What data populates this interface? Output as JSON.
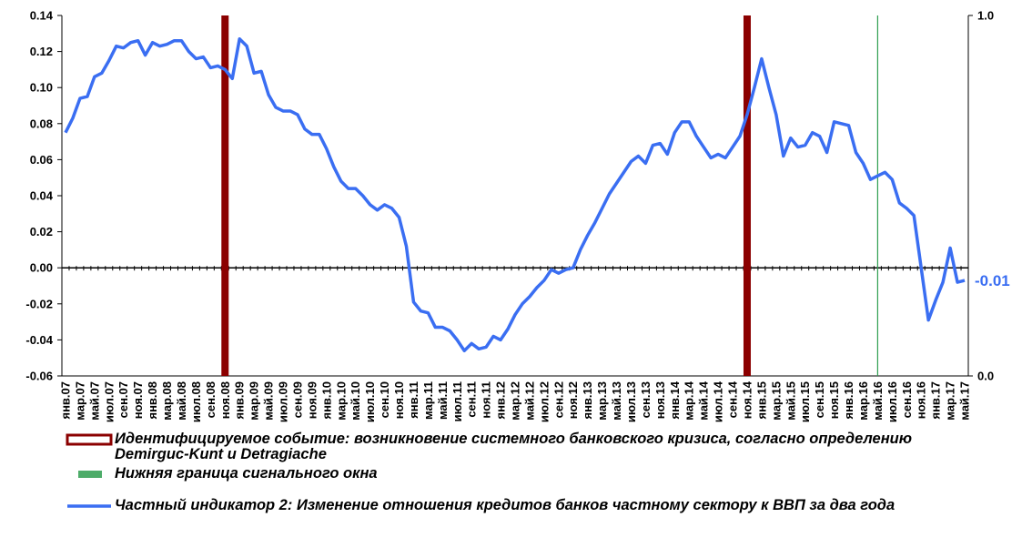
{
  "chart_data": {
    "type": "line",
    "categories": [
      "янв.07",
      null,
      "мар.07",
      null,
      "май.07",
      null,
      "июл.07",
      null,
      "сен.07",
      null,
      "ноя.07",
      null,
      "янв.08",
      null,
      "мар.08",
      null,
      "май.08",
      null,
      "июл.08",
      null,
      "сен.08",
      null,
      "ноя.08",
      null,
      "янв.09",
      null,
      "мар.09",
      null,
      "май.09",
      null,
      "июл.09",
      null,
      "сен.09",
      null,
      "ноя.09",
      null,
      "янв.10",
      null,
      "мар.10",
      null,
      "май.10",
      null,
      "июл.10",
      null,
      "сен.10",
      null,
      "ноя.10",
      null,
      "янв.11",
      null,
      "мар.11",
      null,
      "май.11",
      null,
      "июл.11",
      null,
      "сен.11",
      null,
      "ноя.11",
      null,
      "янв.12",
      null,
      "мар.12",
      null,
      "май.12",
      null,
      "июл.12",
      null,
      "сен.12",
      null,
      "ноя.12",
      null,
      "янв.13",
      null,
      "мар.13",
      null,
      "май.13",
      null,
      "июл.13",
      null,
      "сен.13",
      null,
      "ноя.13",
      null,
      "янв.14",
      null,
      "мар.14",
      null,
      "май.14",
      null,
      "июл.14",
      null,
      "сен.14",
      null,
      "ноя.14",
      null,
      "янв.15",
      null,
      "мар.15",
      null,
      "май.15",
      null,
      "июл.15",
      null,
      "сен.15",
      null,
      "ноя.15",
      null,
      "янв.16",
      null,
      "мар.16",
      null,
      "май.16",
      null,
      "июл.16",
      null,
      "сен.16",
      null,
      "ноя.16",
      null,
      "янв.17",
      null,
      "мар.17",
      null,
      "май.17"
    ],
    "series": [
      {
        "name": "Идентифицируемое событие: возникновение системного банковского кризиса, согласно определению Demirguc-Kunt и Detragiache",
        "type": "bar",
        "axis": "y2",
        "color": "#8b0000",
        "x": [
          "ноя.08",
          "ноя.14"
        ],
        "values": [
          1,
          1
        ]
      },
      {
        "name": "Нижняя граница сигнального окна",
        "type": "bar",
        "axis": "y2",
        "color": "#2e9e4f",
        "x": [
          "май.16"
        ],
        "values": [
          1
        ]
      },
      {
        "name": "Частный индикатор 2: Изменение отношения кредитов банков частному сектору к ВВП за два года",
        "type": "line",
        "color": "#3a6ef2",
        "values": [
          0.075,
          0.083,
          0.094,
          0.095,
          0.106,
          0.108,
          0.115,
          0.123,
          0.122,
          0.125,
          0.126,
          0.118,
          0.125,
          0.123,
          0.124,
          0.126,
          0.126,
          0.12,
          0.116,
          0.117,
          0.111,
          0.112,
          0.11,
          0.105,
          0.127,
          0.123,
          0.108,
          0.109,
          0.096,
          0.089,
          0.087,
          0.087,
          0.085,
          0.077,
          0.074,
          0.074,
          0.066,
          0.056,
          0.048,
          0.044,
          0.044,
          0.04,
          0.035,
          0.032,
          0.035,
          0.033,
          0.028,
          0.012,
          -0.019,
          -0.024,
          -0.025,
          -0.033,
          -0.033,
          -0.035,
          -0.04,
          -0.046,
          -0.042,
          -0.045,
          -0.044,
          -0.038,
          -0.04,
          -0.034,
          -0.026,
          -0.02,
          -0.016,
          -0.011,
          -0.007,
          -0.001,
          -0.003,
          -0.001,
          0.0,
          0.01,
          0.018,
          0.025,
          0.033,
          0.041,
          0.047,
          0.053,
          0.059,
          0.062,
          0.058,
          0.068,
          0.069,
          0.063,
          0.075,
          0.081,
          0.081,
          0.073,
          0.067,
          0.061,
          0.063,
          0.061,
          0.067,
          0.073,
          0.085,
          0.1,
          0.116,
          0.1,
          0.085,
          0.062,
          0.072,
          0.067,
          0.068,
          0.075,
          0.073,
          0.064,
          0.081,
          0.08,
          0.079,
          0.064,
          0.058,
          0.049,
          0.051,
          0.053,
          0.049,
          0.036,
          0.033,
          0.029,
          0.0,
          -0.029,
          -0.018,
          -0.008,
          0.011,
          -0.008,
          -0.007
        ],
        "value_labels": [
          null,
          null,
          null,
          null,
          null,
          null,
          null,
          null,
          null,
          null,
          null,
          null,
          null,
          null,
          null,
          null,
          null,
          null,
          null,
          null,
          null,
          null,
          null,
          null,
          null,
          null,
          null,
          null,
          null,
          null,
          null,
          null,
          null,
          null,
          null,
          null,
          null,
          null,
          null,
          null,
          null,
          null,
          null,
          null,
          null,
          null,
          null,
          null,
          null,
          null,
          null,
          null,
          null,
          null,
          null,
          null,
          null,
          null,
          null,
          null,
          null,
          null,
          null,
          null,
          null,
          null,
          null,
          null,
          null,
          null,
          null,
          null,
          null,
          null,
          null,
          null,
          null,
          null,
          null,
          null,
          null,
          null,
          null,
          null,
          null,
          null,
          null,
          null,
          null,
          null,
          null,
          null,
          null,
          null,
          null,
          null,
          null,
          null,
          null,
          null,
          null,
          null,
          null,
          null,
          null,
          null,
          null,
          null,
          null,
          null,
          null,
          null,
          null,
          null,
          null,
          null,
          null,
          null,
          null,
          null,
          null,
          null,
          null,
          null,
          "-0.01"
        ]
      }
    ],
    "ylim": [
      -0.06,
      0.14
    ],
    "yticks": [
      -0.06,
      -0.04,
      -0.02,
      {
        "value": 0,
        "label": "0.00"
      },
      0.02,
      0.04,
      0.06,
      0.08,
      {
        "value": 0.1,
        "label": "0.10"
      },
      0.12,
      0.14
    ],
    "y2lim": [
      0,
      1
    ],
    "y2ticks": [
      {
        "value": 0,
        "label": "0.0"
      },
      {
        "value": 1,
        "label": "1.0"
      }
    ]
  }
}
